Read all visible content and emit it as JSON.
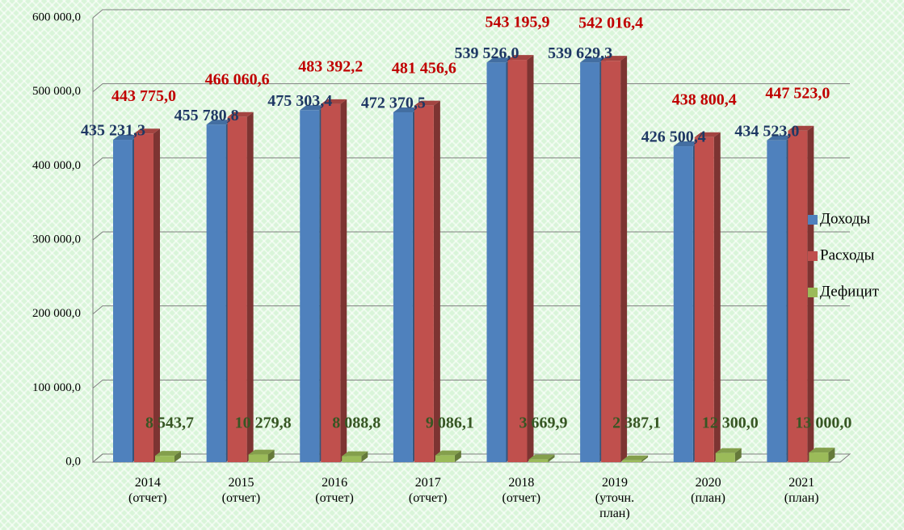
{
  "chart_data": {
    "type": "bar3d",
    "categories": [
      "2014\n(отчет)",
      "2015\n(отчет)",
      "2016\n(отчет)",
      "2017\n(отчет)",
      "2018\n(отчет)",
      "2019\n(уточн.\nплан)",
      "2020\n(план)",
      "2021\n(план)"
    ],
    "series": [
      {
        "name": "Доходы",
        "color": "#4f81bd",
        "label_color": "#1f3864",
        "values": [
          435231.3,
          455780.8,
          475303.4,
          472370.5,
          539526.0,
          539629.3,
          426500.4,
          434523.0
        ],
        "value_labels": [
          "435 231,3",
          "455 780,8",
          "475 303,4",
          "472 370,5",
          "539 526,0",
          "539 629,3",
          "426 500,4",
          "434 523,0"
        ]
      },
      {
        "name": "Расходы",
        "color": "#c0504d",
        "label_color": "#c00000",
        "values": [
          443775.0,
          466060.6,
          483392.2,
          481456.6,
          543195.9,
          542016.4,
          438800.4,
          447523.0
        ],
        "value_labels": [
          "443 775,0",
          "466 060,6",
          "483 392,2",
          "481 456,6",
          "543 195,9",
          "542 016,4",
          "438 800,4",
          "447 523,0"
        ]
      },
      {
        "name": "Дефицит",
        "color": "#9bbb59",
        "label_color": "#375623",
        "values": [
          8543.7,
          10279.8,
          8088.8,
          9086.1,
          3669.9,
          2387.1,
          12300.0,
          13000.0
        ],
        "value_labels": [
          "8 543,7",
          "10 279,8",
          "8 088,8",
          "9 086,1",
          "3 669,9",
          "2 387,1",
          "12 300,0",
          "13 000,0"
        ]
      }
    ],
    "ylim": [
      0,
      600000
    ],
    "yticks": [
      {
        "value": 0,
        "label": "0,0"
      },
      {
        "value": 100000,
        "label": "100 000,0"
      },
      {
        "value": 200000,
        "label": "200 000,0"
      },
      {
        "value": 300000,
        "label": "300 000,0"
      },
      {
        "value": 400000,
        "label": "400 000,0"
      },
      {
        "value": 500000,
        "label": "500 000,0"
      },
      {
        "value": 600000,
        "label": "600 000,0"
      }
    ],
    "grid": true,
    "legend": "right"
  }
}
